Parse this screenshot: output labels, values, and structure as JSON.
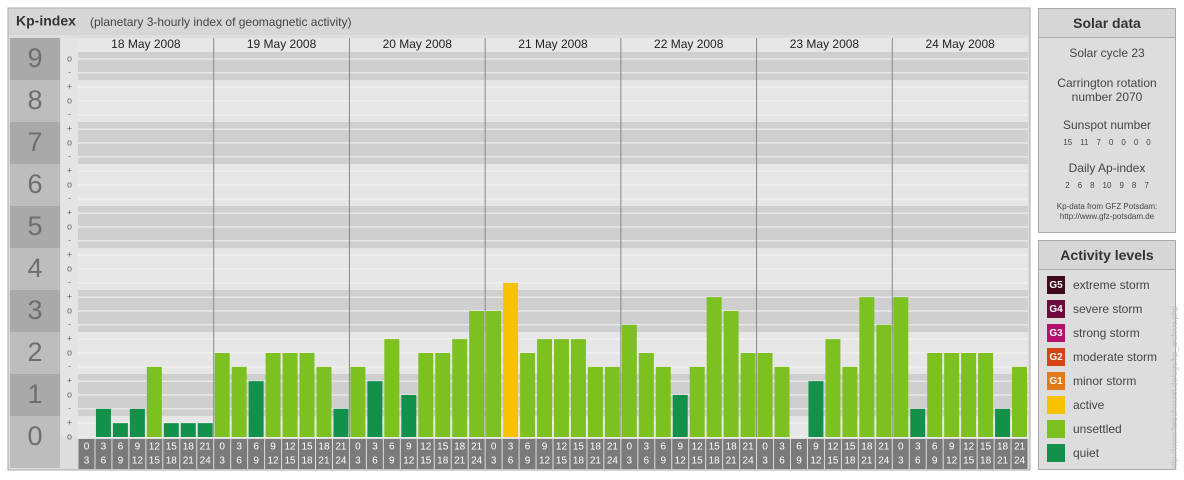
{
  "chart_data": {
    "type": "bar",
    "title": "Kp-index",
    "subtitle": "(planetary 3-hourly index of geomagnetic activity)",
    "days": [
      "18 May 2008",
      "19 May 2008",
      "20 May 2008",
      "21 May 2008",
      "22 May 2008",
      "23 May 2008",
      "24 May 2008"
    ],
    "hours": [
      "0",
      "3",
      "6",
      "9",
      "12",
      "15",
      "18",
      "21",
      "24"
    ],
    "ylim": [
      0,
      9.5
    ],
    "yticks": [
      0,
      1,
      2,
      3,
      4,
      5,
      6,
      7,
      8,
      9
    ],
    "minor_ticks": [
      {
        "value": 0,
        "label": "o"
      },
      {
        "value": 0.33,
        "label": "+"
      },
      {
        "value": 0.67,
        "label": "-"
      },
      {
        "value": 1,
        "label": "o"
      },
      {
        "value": 1.33,
        "label": "+"
      },
      {
        "value": 1.67,
        "label": "-"
      },
      {
        "value": 2,
        "label": "o"
      },
      {
        "value": 2.33,
        "label": "+"
      },
      {
        "value": 2.67,
        "label": "-"
      },
      {
        "value": 3,
        "label": "o"
      },
      {
        "value": 3.33,
        "label": "+"
      },
      {
        "value": 3.67,
        "label": "-"
      },
      {
        "value": 4,
        "label": "o"
      },
      {
        "value": 4.33,
        "label": "+"
      },
      {
        "value": 4.67,
        "label": "-"
      },
      {
        "value": 5,
        "label": "o"
      },
      {
        "value": 5.33,
        "label": "+"
      },
      {
        "value": 5.67,
        "label": "-"
      },
      {
        "value": 6,
        "label": "o"
      },
      {
        "value": 6.33,
        "label": "+"
      },
      {
        "value": 6.67,
        "label": "-"
      },
      {
        "value": 7,
        "label": "o"
      },
      {
        "value": 7.33,
        "label": "+"
      },
      {
        "value": 7.67,
        "label": "-"
      },
      {
        "value": 8,
        "label": "o"
      },
      {
        "value": 8.33,
        "label": "+"
      },
      {
        "value": 8.67,
        "label": "-"
      },
      {
        "value": 9,
        "label": "o"
      }
    ],
    "grid": true,
    "series": [
      {
        "name": "quiet",
        "color": "#13904a",
        "values": [
          0,
          0.67,
          0.33,
          0.67,
          null,
          0.33,
          0.33,
          0.33,
          null,
          null,
          1.33,
          null,
          null,
          null,
          null,
          0.67,
          null,
          1.33,
          null,
          1,
          null,
          null,
          null,
          null,
          null,
          null,
          null,
          null,
          null,
          null,
          null,
          null,
          null,
          null,
          null,
          1,
          null,
          null,
          null,
          null,
          null,
          null,
          0,
          1.33,
          null,
          null,
          null,
          null,
          null,
          0.67,
          null,
          null,
          null,
          null,
          0.67,
          null
        ]
      },
      {
        "name": "unsettled",
        "color": "#7cc11f",
        "values": [
          null,
          null,
          null,
          null,
          1.67,
          null,
          null,
          null,
          2,
          1.67,
          null,
          2,
          2,
          2,
          1.67,
          null,
          1.67,
          null,
          2.33,
          null,
          2,
          2,
          2.33,
          3,
          3,
          null,
          2,
          2.33,
          2.33,
          2.33,
          1.67,
          1.67,
          2.67,
          2,
          1.67,
          null,
          1.67,
          3.33,
          3,
          2,
          2,
          1.67,
          null,
          null,
          2.33,
          1.67,
          3.33,
          2.67,
          3.33,
          null,
          2,
          2,
          2,
          2,
          null,
          1.67
        ]
      },
      {
        "name": "active",
        "color": "#f7c300",
        "values": [
          null,
          null,
          null,
          null,
          null,
          null,
          null,
          null,
          null,
          null,
          null,
          null,
          null,
          null,
          null,
          null,
          null,
          null,
          null,
          null,
          null,
          null,
          null,
          null,
          null,
          3.67,
          null,
          null,
          null,
          null,
          null,
          null,
          null,
          null,
          null,
          null,
          null,
          null,
          null,
          null,
          null,
          null,
          null,
          null,
          null,
          null,
          null,
          null,
          null,
          null,
          null,
          null,
          null,
          null,
          null,
          null
        ]
      }
    ],
    "activity_levels": {
      "title": "Activity levels",
      "levels": [
        {
          "badge": "G5",
          "name": "extreme storm",
          "color": "#40081f"
        },
        {
          "badge": "G4",
          "name": "severe storm",
          "color": "#6e0b3c"
        },
        {
          "badge": "G3",
          "name": "strong storm",
          "color": "#b4106c"
        },
        {
          "badge": "G2",
          "name": "moderate storm",
          "color": "#d44414"
        },
        {
          "badge": "G1",
          "name": "minor storm",
          "color": "#e27a18"
        }
      ]
    }
  },
  "solar_data": {
    "title": "Solar data",
    "cycle": "Solar cycle 23",
    "carrington": "Carrington rotation number 2070",
    "sunspot_label": "Sunspot number",
    "sunspot_numbers": [
      15,
      11,
      7,
      0,
      0,
      0,
      0
    ],
    "ap_label": "Daily Ap-index",
    "ap_index": [
      2,
      6,
      8,
      10,
      9,
      8,
      7
    ],
    "source_note": "Kp-data from GFZ Potsdam:",
    "source_url": "http://www.gfz-potsdam.de"
  },
  "credit": "http://www.fleischwurst.de/ugo/kp_archive.php"
}
